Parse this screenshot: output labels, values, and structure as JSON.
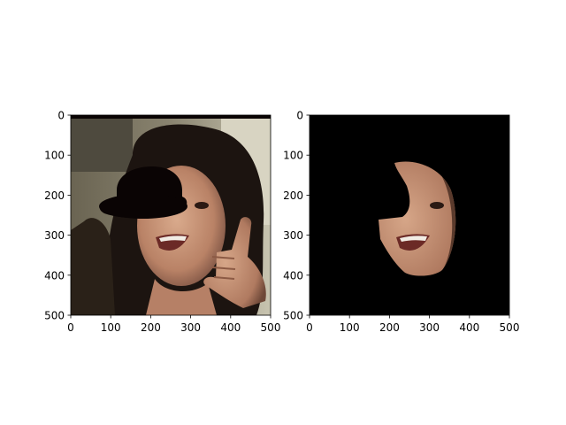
{
  "colors": {
    "background": "#ffffff",
    "axis": "#000000",
    "masked_region": "#0a0404",
    "black_fill": "#000000"
  },
  "chart_data": [
    {
      "type": "image",
      "panel": "left",
      "content": "photo of a smiling woman with long dark hair making a phone-call hand gesture, with a black hat-shaped mask over the upper-left of her face",
      "xlim": [
        0,
        500
      ],
      "ylim": [
        500,
        0
      ],
      "xticks": [
        0,
        100,
        200,
        300,
        400,
        500
      ],
      "yticks": [
        0,
        100,
        200,
        300,
        400,
        500
      ],
      "xtick_labels": [
        "0",
        "100",
        "200",
        "300",
        "400",
        "500"
      ],
      "ytick_labels": [
        "0",
        "100",
        "200",
        "300",
        "400",
        "500"
      ]
    },
    {
      "type": "image",
      "panel": "right",
      "content": "segmented face region on a black background; the hat-shaped masked area is also black",
      "xlim": [
        0,
        500
      ],
      "ylim": [
        500,
        0
      ],
      "xticks": [
        0,
        100,
        200,
        300,
        400,
        500
      ],
      "yticks": [
        0,
        100,
        200,
        300,
        400,
        500
      ],
      "xtick_labels": [
        "0",
        "100",
        "200",
        "300",
        "400",
        "500"
      ],
      "ytick_labels": [
        "0",
        "100",
        "200",
        "300",
        "400",
        "500"
      ]
    }
  ]
}
